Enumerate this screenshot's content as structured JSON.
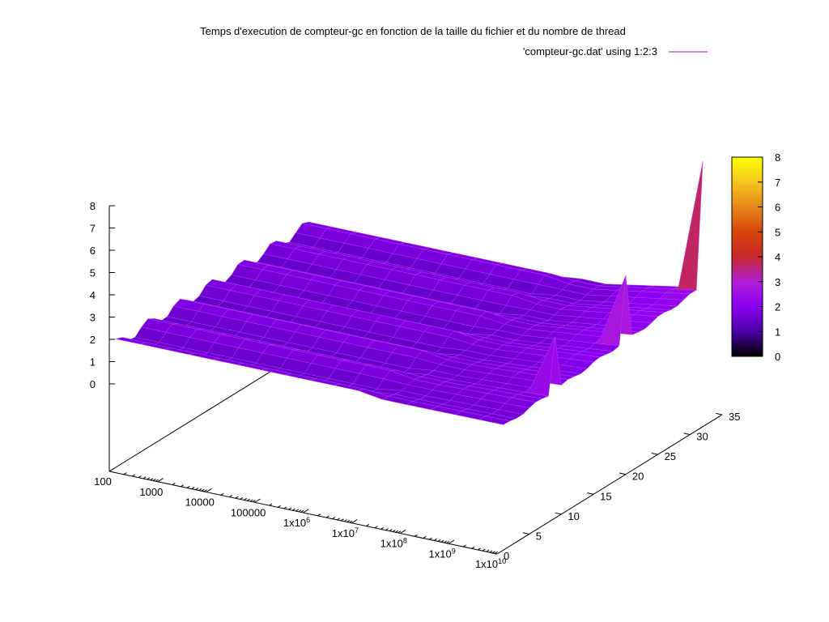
{
  "chart_data": {
    "type": "surface3d",
    "title": "Temps d'execution de compteur-gc en fonction de la taille du fichier et du nombre de thread",
    "legend": {
      "label": "'compteur-gc.dat' using 1:2:3",
      "position": "top-right",
      "color": "#9400d3"
    },
    "x_axis": {
      "scale": "log10",
      "range": [
        100,
        10000000000
      ],
      "ticks": [
        {
          "base": "100",
          "exp": ""
        },
        {
          "base": "1000",
          "exp": ""
        },
        {
          "base": "10000",
          "exp": ""
        },
        {
          "base": "100000",
          "exp": ""
        },
        {
          "base": "1x10",
          "exp": "6"
        },
        {
          "base": "1x10",
          "exp": "7"
        },
        {
          "base": "1x10",
          "exp": "8"
        },
        {
          "base": "1x10",
          "exp": "9"
        },
        {
          "base": "1x10",
          "exp": "10"
        }
      ]
    },
    "y_axis": {
      "range": [
        0,
        35
      ],
      "ticks": [
        "0",
        "5",
        "10",
        "15",
        "20",
        "25",
        "30",
        "35"
      ]
    },
    "z_axis": {
      "range": [
        0,
        8
      ],
      "ticks": [
        "0",
        "1",
        "2",
        "3",
        "4",
        "5",
        "6",
        "7",
        "8"
      ]
    },
    "colorbar": {
      "range": [
        0,
        8
      ],
      "ticks": [
        "0",
        "1",
        "2",
        "3",
        "4",
        "5",
        "6",
        "7",
        "8"
      ],
      "palette": "black-purple-red-yellow"
    },
    "surface_profile": {
      "x_log10": [
        2,
        2.5,
        3,
        3.5,
        4,
        4.5,
        5,
        5.5,
        6,
        6.5,
        7,
        7.5,
        8,
        8.5,
        9,
        9.5,
        10
      ],
      "threads": [
        1,
        2,
        3,
        4,
        5,
        6,
        7,
        8,
        9,
        10,
        11,
        12,
        13,
        14,
        15,
        16,
        17,
        18,
        19,
        20,
        21,
        22,
        23,
        24,
        25,
        26,
        27,
        28,
        29,
        30,
        31,
        32
      ],
      "base_time_s": 1.6,
      "spikes": [
        {
          "x": 10000000000,
          "threads": 32,
          "time_s": 8.0
        },
        {
          "x": 10000000000,
          "threads": 20,
          "time_s": 5.0
        },
        {
          "x": 10000000000,
          "threads": 9,
          "time_s": 4.2
        }
      ]
    },
    "grid": false
  }
}
